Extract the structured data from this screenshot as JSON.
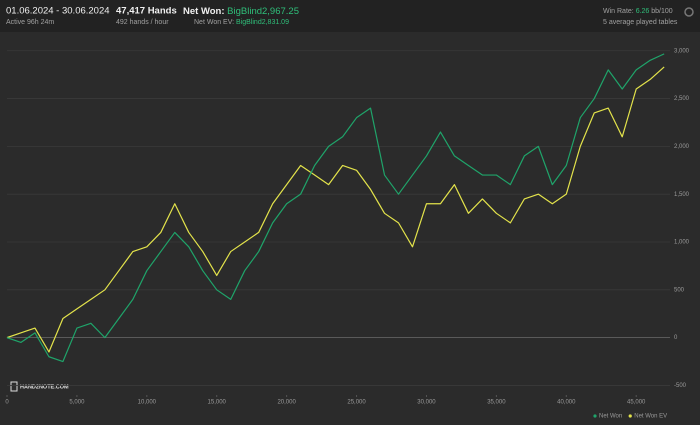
{
  "header": {
    "date_range": "01.06.2024 - 30.06.2024",
    "active": "Active 96h 24m",
    "hands": "47,417 Hands",
    "rate": "492 hands / hour",
    "net_won_label": "Net Won:",
    "net_won_value": "BigBlind2,967.25",
    "net_won_ev_label": "Net Won  EV:",
    "net_won_ev_value": "BigBlind2,831.09",
    "win_rate_label": "Win Rate:",
    "win_rate_value": "6.26",
    "win_rate_unit": "bb/100",
    "tables": "5 average played tables",
    "logo": "HAND2NOTE.COM"
  },
  "chart_data": {
    "type": "line",
    "x": [
      0,
      1000,
      2000,
      3000,
      4000,
      5000,
      6000,
      7000,
      8000,
      9000,
      10000,
      11000,
      12000,
      13000,
      14000,
      15000,
      16000,
      17000,
      18000,
      19000,
      20000,
      21000,
      22000,
      23000,
      24000,
      25000,
      26000,
      27000,
      28000,
      29000,
      30000,
      31000,
      32000,
      33000,
      34000,
      35000,
      36000,
      37000,
      38000,
      39000,
      40000,
      41000,
      42000,
      43000,
      44000,
      45000,
      46000,
      47000
    ],
    "series": [
      {
        "name": "Net Won",
        "color": "#1fa46a",
        "values": [
          0,
          -50,
          50,
          -200,
          -250,
          100,
          150,
          0,
          200,
          400,
          700,
          900,
          1100,
          950,
          700,
          500,
          400,
          700,
          900,
          1200,
          1400,
          1500,
          1800,
          2000,
          2100,
          2300,
          2400,
          1700,
          1500,
          1700,
          1900,
          2150,
          1900,
          1800,
          1700,
          1700,
          1600,
          1900,
          2000,
          1600,
          1800,
          2300,
          2500,
          2800,
          2600,
          2800,
          2900,
          2967
        ]
      },
      {
        "name": "Net Won EV",
        "color": "#e3e34b",
        "values": [
          0,
          50,
          100,
          -150,
          200,
          300,
          400,
          500,
          700,
          900,
          950,
          1100,
          1400,
          1100,
          900,
          650,
          900,
          1000,
          1100,
          1400,
          1600,
          1800,
          1700,
          1600,
          1800,
          1750,
          1550,
          1300,
          1200,
          950,
          1400,
          1400,
          1600,
          1300,
          1450,
          1300,
          1200,
          1450,
          1500,
          1400,
          1500,
          2000,
          2350,
          2400,
          2100,
          2600,
          2700,
          2831
        ]
      }
    ],
    "xlim": [
      0,
      47417
    ],
    "xticks": [
      0,
      {
        "value": 5000,
        "label": "5,000"
      },
      {
        "value": 10000,
        "label": "10,000"
      },
      {
        "value": 15000,
        "label": "15,000"
      },
      {
        "value": 20000,
        "label": "20,000"
      },
      {
        "value": 25000,
        "label": "25,000"
      },
      {
        "value": 30000,
        "label": "30,000"
      },
      {
        "value": 35000,
        "label": "35,000"
      },
      {
        "value": 40000,
        "label": "40,000"
      },
      {
        "value": 45000,
        "label": "45,000"
      }
    ],
    "ylim": [
      -600,
      3060
    ],
    "yticks": [
      -500,
      0,
      500,
      {
        "value": 1000,
        "label": "1,000"
      },
      {
        "value": 1500,
        "label": "1,500"
      },
      {
        "value": 2000,
        "label": "2,000"
      },
      {
        "value": 2500,
        "label": "2,500"
      },
      {
        "value": 3000,
        "label": "3,000"
      }
    ],
    "grid": true
  }
}
